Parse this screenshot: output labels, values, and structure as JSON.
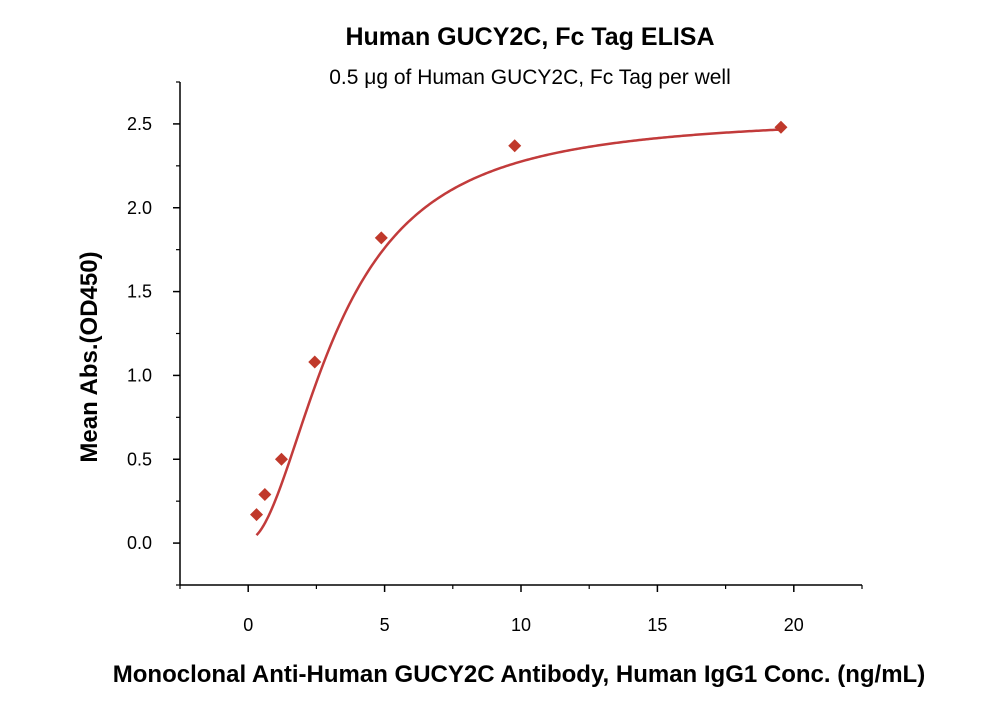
{
  "chart_data": {
    "type": "scatter",
    "title": "Human GUCY2C, Fc Tag ELISA",
    "subtitle": "0.5 μg of Human GUCY2C, Fc Tag per well",
    "xlabel": "Monoclonal Anti-Human GUCY2C Antibody, Human IgG1 Conc. (ng/mL)",
    "ylabel": "Mean Abs.(OD450)",
    "xlim": [
      -2.5,
      22.5
    ],
    "ylim": [
      -0.25,
      2.75
    ],
    "x_ticks": [
      0,
      5,
      10,
      15,
      20
    ],
    "y_ticks": [
      0.0,
      0.5,
      1.0,
      1.5,
      2.0,
      2.5
    ],
    "x_tick_labels": [
      "0",
      "5",
      "10",
      "15",
      "20"
    ],
    "y_tick_labels": [
      "0.0",
      "0.5",
      "1.0",
      "1.5",
      "2.0",
      "2.5"
    ],
    "grid": false,
    "series": [
      {
        "x": [
          0.305,
          0.61,
          1.22,
          2.44,
          4.88,
          9.77,
          19.53
        ],
        "y": [
          0.17,
          0.29,
          0.5,
          1.08,
          1.82,
          2.37,
          2.48
        ],
        "marker": "diamond",
        "fit": "4PL",
        "color": "#c0392b",
        "line_color": "#c23b3b"
      }
    ]
  }
}
